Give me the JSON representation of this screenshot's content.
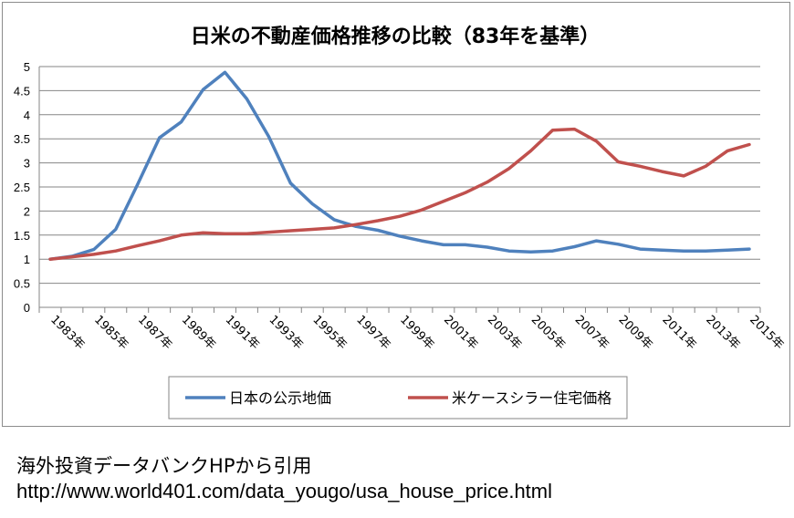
{
  "chart_data": {
    "type": "line",
    "title": "日米の不動産価格推移の比較（83年を基準）",
    "ylim": [
      0,
      5
    ],
    "yticks": [
      "0",
      "0.5",
      "1",
      "1.5",
      "2",
      "2.5",
      "3",
      "3.5",
      "4",
      "4.5",
      "5"
    ],
    "x": [
      1983,
      1984,
      1985,
      1986,
      1987,
      1988,
      1989,
      1990,
      1991,
      1992,
      1993,
      1994,
      1995,
      1996,
      1997,
      1998,
      1999,
      2000,
      2001,
      2002,
      2003,
      2004,
      2005,
      2006,
      2007,
      2008,
      2009,
      2010,
      2011,
      2012,
      2013,
      2014,
      2015
    ],
    "x_tick_labels": [
      "1983年",
      "1985年",
      "1987年",
      "1989年",
      "1991年",
      "1993年",
      "1995年",
      "1997年",
      "1999年",
      "2001年",
      "2003年",
      "2005年",
      "2007年",
      "2009年",
      "2011年",
      "2013年",
      "2015年"
    ],
    "grid": true,
    "legend_position": "bottom",
    "series": [
      {
        "name": "日本の公示地価",
        "color": "#4f81bd",
        "values": [
          1.0,
          1.06,
          1.2,
          1.62,
          2.55,
          3.52,
          3.85,
          4.52,
          4.88,
          4.33,
          3.55,
          2.58,
          2.15,
          1.82,
          1.68,
          1.6,
          1.48,
          1.38,
          1.3,
          1.3,
          1.25,
          1.17,
          1.15,
          1.17,
          1.26,
          1.38,
          1.31,
          1.21,
          1.19,
          1.17,
          1.17,
          1.19,
          1.21
        ]
      },
      {
        "name": "米ケースシラー住宅価格",
        "color": "#c0504d",
        "values": [
          1.0,
          1.05,
          1.1,
          1.17,
          1.28,
          1.38,
          1.5,
          1.55,
          1.53,
          1.53,
          1.56,
          1.59,
          1.62,
          1.65,
          1.72,
          1.8,
          1.89,
          2.02,
          2.2,
          2.38,
          2.6,
          2.88,
          3.25,
          3.68,
          3.7,
          3.45,
          3.02,
          2.93,
          2.82,
          2.73,
          2.93,
          3.25,
          3.38
        ]
      }
    ]
  },
  "captions": {
    "source": "海外投資データバンクHPから引用",
    "url": "http://www.world401.com/data_yougo/usa_house_price.html"
  }
}
